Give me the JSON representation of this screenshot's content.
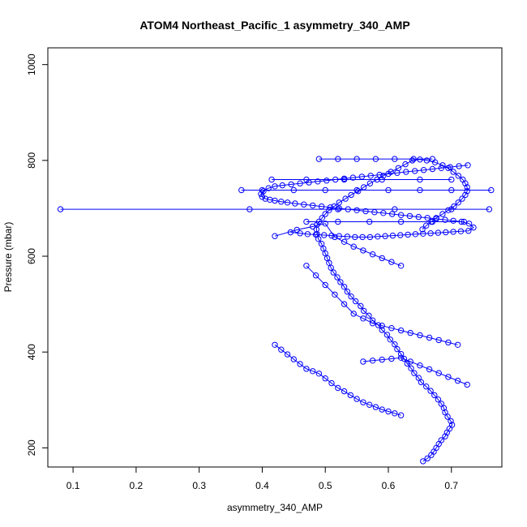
{
  "chart_data": {
    "type": "scatter",
    "title": "ATOM4 Northeast_Pacific_1 asymmetry_340_AMP",
    "xlabel": "asymmetry_340_AMP",
    "ylabel": "Pressure (mbar)",
    "xlim": [
      0.06,
      0.78
    ],
    "ylim": [
      1035,
      160
    ],
    "y_reversed": true,
    "x_ticks": [
      0.1,
      0.2,
      0.3,
      0.4,
      0.5,
      0.6,
      0.7
    ],
    "x_tick_labels": [
      "0.1",
      "0.2",
      "0.3",
      "0.4",
      "0.5",
      "0.6",
      "0.7"
    ],
    "y_ticks": [
      200,
      400,
      600,
      800,
      1000
    ],
    "y_tick_labels": [
      "200",
      "400",
      "600",
      "800",
      "1000"
    ],
    "grid": false,
    "marker": "open-circle",
    "connected": true,
    "color": "#0000ff",
    "series": [
      {
        "x": [
          0.655,
          0.662,
          0.668,
          0.672,
          0.676,
          0.68,
          0.684,
          0.69,
          0.693,
          0.697,
          0.701,
          0.699,
          0.694,
          0.69,
          0.688,
          0.684,
          0.679,
          0.673,
          0.667,
          0.66,
          0.652,
          0.648,
          0.641,
          0.636,
          0.63,
          0.625,
          0.62,
          0.614,
          0.61,
          0.603,
          0.598,
          0.59,
          0.584,
          0.575,
          0.569,
          0.561,
          0.556,
          0.548,
          0.541,
          0.535,
          0.53,
          0.524,
          0.519,
          0.513,
          0.509,
          0.506,
          0.503,
          0.5,
          0.497,
          0.494,
          0.489,
          0.487,
          0.486,
          0.487,
          0.49,
          0.495,
          0.5,
          0.506,
          0.514,
          0.522,
          0.532,
          0.541,
          0.552,
          0.561,
          0.571,
          0.582,
          0.592,
          0.604,
          0.616,
          0.627,
          0.638,
          0.65,
          0.661,
          0.674,
          0.686,
          0.695,
          0.703,
          0.711,
          0.718,
          0.722,
          0.725,
          0.725,
          0.722,
          0.717,
          0.711,
          0.704,
          0.695,
          0.686,
          0.676,
          0.668,
          0.66,
          0.654
        ],
        "y": [
          172,
          178,
          185,
          192,
          200,
          208,
          216,
          224,
          232,
          240,
          248,
          256,
          265,
          274,
          283,
          292,
          301,
          310,
          319,
          328,
          337,
          346,
          356,
          366,
          376,
          386,
          396,
          406,
          416,
          426,
          436,
          446,
          456,
          466,
          476,
          486,
          496,
          506,
          516,
          526,
          536,
          546,
          556,
          566,
          576,
          586,
          596,
          606,
          616,
          626,
          636,
          646,
          656,
          666,
          672,
          680,
          688,
          696,
          704,
          712,
          720,
          728,
          736,
          744,
          752,
          760,
          768,
          776,
          784,
          792,
          800,
          802,
          800,
          796,
          790,
          784,
          776,
          768,
          760,
          752,
          744,
          736,
          728,
          720,
          712,
          704,
          696,
          688,
          680,
          672,
          664,
          656
        ]
      },
      {
        "x": [
          0.445,
          0.46,
          0.472,
          0.485,
          0.498,
          0.51,
          0.522,
          0.535,
          0.547,
          0.559,
          0.571,
          0.583,
          0.595,
          0.607,
          0.619,
          0.631,
          0.643,
          0.655,
          0.667,
          0.679,
          0.691,
          0.703,
          0.715,
          0.727,
          0.735,
          0.728,
          0.716,
          0.703,
          0.69,
          0.676,
          0.662,
          0.648,
          0.634,
          0.62,
          0.606,
          0.592,
          0.578,
          0.564,
          0.55,
          0.536,
          0.522,
          0.508,
          0.494,
          0.48,
          0.466,
          0.452,
          0.44,
          0.43,
          0.42,
          0.412,
          0.405,
          0.4,
          0.398,
          0.402,
          0.41,
          0.42,
          0.432,
          0.446,
          0.46,
          0.474,
          0.488,
          0.502,
          0.516,
          0.53,
          0.544,
          0.558,
          0.572,
          0.586,
          0.6,
          0.614,
          0.628,
          0.642,
          0.656,
          0.67,
          0.684,
          0.698,
          0.712,
          0.726
        ],
        "y": [
          650,
          648,
          646,
          645,
          644,
          643,
          642,
          641,
          640,
          640,
          640,
          641,
          642,
          643,
          644,
          645,
          646,
          647,
          648,
          649,
          650,
          651,
          652,
          653,
          660,
          668,
          672,
          674,
          676,
          678,
          680,
          682,
          684,
          686,
          688,
          690,
          692,
          694,
          696,
          698,
          700,
          702,
          704,
          706,
          708,
          710,
          712,
          714,
          716,
          718,
          720,
          724,
          730,
          736,
          742,
          746,
          748,
          750,
          752,
          754,
          756,
          758,
          760,
          762,
          764,
          766,
          768,
          770,
          772,
          774,
          776,
          778,
          780,
          782,
          784,
          786,
          788,
          790
        ]
      },
      {
        "x": [
          0.08,
          0.38,
          0.52,
          0.61,
          0.7,
          0.76
        ],
        "y": [
          698,
          698,
          698,
          698,
          698,
          698
        ]
      },
      {
        "x": [
          0.367,
          0.4,
          0.45,
          0.5,
          0.55,
          0.6,
          0.65,
          0.7,
          0.763
        ],
        "y": [
          738,
          738,
          738,
          738,
          738,
          738,
          738,
          738,
          738
        ]
      },
      {
        "x": [
          0.49,
          0.52,
          0.55,
          0.58,
          0.61,
          0.64,
          0.67
        ],
        "y": [
          803,
          803,
          803,
          803,
          803,
          803,
          803
        ]
      },
      {
        "x": [
          0.415,
          0.47,
          0.53,
          0.59,
          0.65,
          0.7
        ],
        "y": [
          760,
          760,
          760,
          760,
          760,
          760
        ]
      },
      {
        "x": [
          0.47,
          0.52,
          0.57,
          0.62,
          0.67,
          0.72
        ],
        "y": [
          672,
          672,
          672,
          672,
          672,
          672
        ]
      },
      {
        "x": [
          0.42,
          0.455,
          0.48,
          0.5,
          0.515,
          0.53,
          0.545,
          0.56,
          0.575,
          0.59,
          0.605,
          0.62
        ],
        "y": [
          642,
          655,
          662,
          668,
          640,
          630,
          620,
          612,
          604,
          596,
          588,
          580
        ]
      },
      {
        "x": [
          0.42,
          0.43,
          0.44,
          0.45,
          0.46,
          0.47,
          0.48,
          0.49,
          0.5,
          0.51,
          0.52,
          0.53,
          0.54,
          0.55,
          0.56,
          0.57,
          0.58,
          0.59,
          0.6,
          0.61,
          0.62
        ],
        "y": [
          415,
          405,
          395,
          385,
          375,
          365,
          360,
          355,
          345,
          335,
          325,
          318,
          310,
          302,
          295,
          290,
          285,
          280,
          276,
          272,
          268
        ]
      },
      {
        "x": [
          0.56,
          0.575,
          0.59,
          0.605,
          0.62,
          0.635,
          0.65,
          0.665,
          0.68,
          0.695,
          0.71,
          0.725
        ],
        "y": [
          380,
          382,
          384,
          386,
          388,
          380,
          372,
          364,
          356,
          348,
          340,
          332
        ]
      },
      {
        "x": [
          0.47,
          0.485,
          0.5,
          0.515,
          0.53,
          0.545,
          0.56,
          0.575,
          0.59,
          0.605,
          0.62,
          0.635,
          0.65,
          0.665,
          0.68,
          0.695,
          0.71
        ],
        "y": [
          580,
          560,
          540,
          520,
          500,
          480,
          470,
          460,
          455,
          450,
          445,
          440,
          435,
          430,
          425,
          420,
          415
        ]
      }
    ]
  }
}
